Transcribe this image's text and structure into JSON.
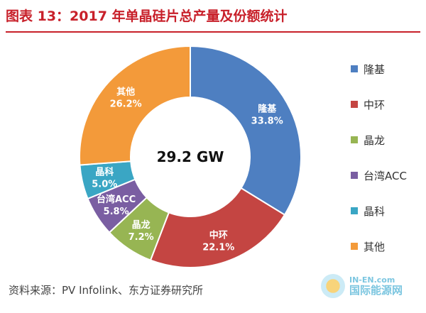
{
  "header": {
    "title": "图表 13：2017 年单晶硅片总产量及份额统计"
  },
  "chart_data": {
    "type": "pie",
    "style": "donut",
    "center_label": "29.2 GW",
    "slices": [
      {
        "name": "隆基",
        "value": 33.8,
        "label_value": "33.8%",
        "color": "#4e7fc1"
      },
      {
        "name": "中环",
        "value": 22.1,
        "label_value": "22.1%",
        "color": "#c44542"
      },
      {
        "name": "晶龙",
        "value": 7.2,
        "label_value": "7.2%",
        "color": "#97b553"
      },
      {
        "name": "台湾ACC",
        "value": 5.8,
        "label_value": "5.8%",
        "color": "#7a5ea2"
      },
      {
        "name": "晶科",
        "value": 5.0,
        "label_value": "5.0%",
        "color": "#3aa6c4"
      },
      {
        "name": "其他",
        "value": 26.2,
        "label_value": "26.2%",
        "color": "#f39a3a"
      }
    ],
    "legend": {
      "position": "right"
    }
  },
  "footer": {
    "source": "资料来源：PV Infolink、东方证券研究所"
  },
  "watermark": {
    "domain": "IN-EN.com",
    "name": "国际能源网"
  }
}
